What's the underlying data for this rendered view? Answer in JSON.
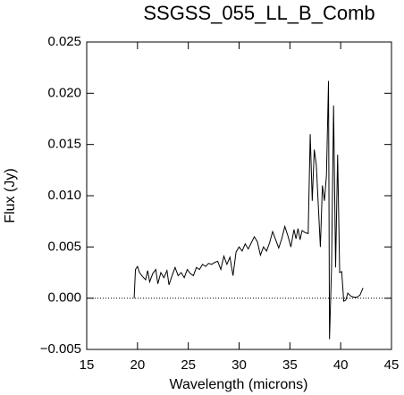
{
  "chart_data": {
    "type": "line",
    "title": "SSGSS_055_LL_B_Comb",
    "x_label": "Wavelength (microns)",
    "y_label": "Flux (Jy)",
    "xlim": [
      15,
      45
    ],
    "ylim": [
      -0.005,
      0.025
    ],
    "xticks": [
      15,
      20,
      25,
      30,
      35,
      40,
      45
    ],
    "yticks": [
      {
        "value": -0.005,
        "label": "−0.005"
      },
      {
        "value": 0,
        "label": "0.000"
      },
      {
        "value": 0.005,
        "label": "0.005"
      },
      {
        "value": 0.01,
        "label": "0.010"
      },
      {
        "value": 0.015,
        "label": "0.015"
      },
      {
        "value": 0.02,
        "label": "0.020"
      },
      {
        "value": 0.025,
        "label": "0.025"
      }
    ],
    "zero_line": true,
    "grid": false,
    "x": [
      19.67,
      19.8,
      20.0,
      20.2,
      20.5,
      20.8,
      21.0,
      21.2,
      21.5,
      21.8,
      22.0,
      22.3,
      22.6,
      22.9,
      23.1,
      23.4,
      23.7,
      24.0,
      24.3,
      24.6,
      24.9,
      25.2,
      25.5,
      25.8,
      26.1,
      26.4,
      26.7,
      27.0,
      27.3,
      27.6,
      27.9,
      28.2,
      28.5,
      28.8,
      29.1,
      29.4,
      29.7,
      30.0,
      30.3,
      30.6,
      30.9,
      31.2,
      31.5,
      31.8,
      32.1,
      32.4,
      32.7,
      33.0,
      33.3,
      33.6,
      33.9,
      34.2,
      34.5,
      34.8,
      35.1,
      35.4,
      35.6,
      35.8,
      36.0,
      36.2,
      36.5,
      36.8,
      37.0,
      37.2,
      37.4,
      37.6,
      37.8,
      38.0,
      38.2,
      38.4,
      38.6,
      38.8,
      38.9,
      39.1,
      39.3,
      39.5,
      39.7,
      39.9,
      40.1,
      40.3,
      40.5,
      40.7,
      41.0,
      41.3,
      41.6,
      41.9,
      42.2
    ],
    "series": [
      {
        "name": "Flux",
        "color": "#000000",
        "values": [
          0.0,
          0.0028,
          0.0031,
          0.0025,
          0.0021,
          0.0018,
          0.0027,
          0.0016,
          0.0024,
          0.0028,
          0.0014,
          0.0025,
          0.002,
          0.0027,
          0.0013,
          0.0022,
          0.003,
          0.0022,
          0.0025,
          0.002,
          0.0028,
          0.0024,
          0.0022,
          0.003,
          0.0028,
          0.0033,
          0.0031,
          0.0034,
          0.0033,
          0.0035,
          0.0036,
          0.0028,
          0.0041,
          0.0033,
          0.004,
          0.0022,
          0.0045,
          0.005,
          0.0046,
          0.0053,
          0.0048,
          0.0054,
          0.006,
          0.0055,
          0.0042,
          0.005,
          0.0046,
          0.0054,
          0.0065,
          0.0057,
          0.0049,
          0.0058,
          0.007,
          0.0061,
          0.005,
          0.0067,
          0.0058,
          0.0068,
          0.0057,
          0.0066,
          0.0064,
          0.0063,
          0.016,
          0.0095,
          0.0145,
          0.013,
          0.009,
          0.005,
          0.011,
          0.0095,
          0.012,
          0.0212,
          -0.004,
          0.003,
          0.0188,
          0.003,
          0.014,
          0.0025,
          0.0026,
          -0.0003,
          -0.0002,
          0.0005,
          0.0002,
          0.0001,
          0.0001,
          0.0003,
          0.001
        ]
      }
    ]
  }
}
